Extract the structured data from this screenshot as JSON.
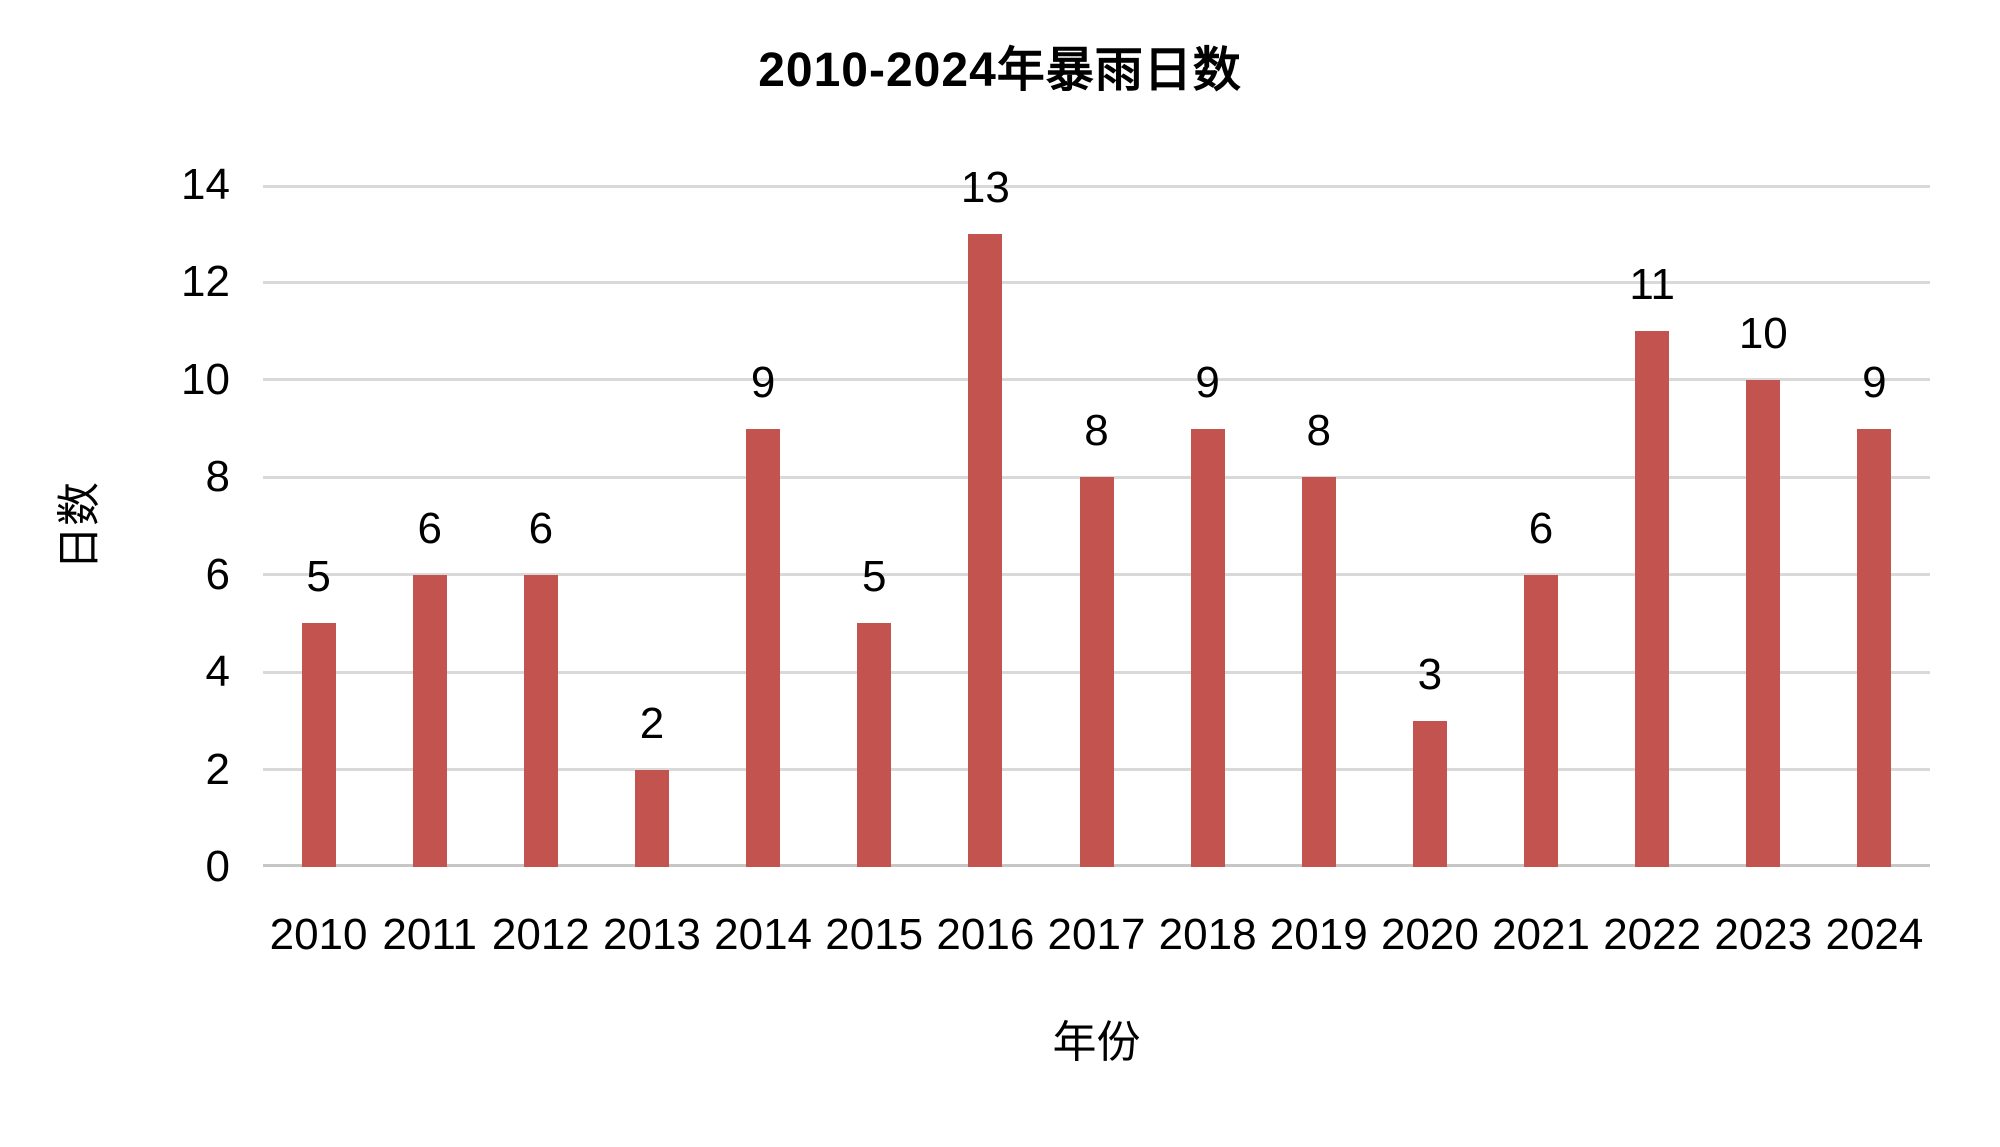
{
  "chart_data": {
    "type": "bar",
    "title": "2010-2024年暴雨日数",
    "xlabel": "年份",
    "ylabel": "日数",
    "categories": [
      "2010",
      "2011",
      "2012",
      "2013",
      "2014",
      "2015",
      "2016",
      "2017",
      "2018",
      "2019",
      "2020",
      "2021",
      "2022",
      "2023",
      "2024"
    ],
    "values": [
      5,
      6,
      6,
      2,
      9,
      5,
      13,
      8,
      9,
      8,
      3,
      6,
      11,
      10,
      9
    ],
    "yticks": [
      0,
      2,
      4,
      6,
      8,
      10,
      12,
      14
    ],
    "ylim": [
      0,
      14
    ],
    "data_labels": true,
    "grid": "horizontal",
    "legend": "none",
    "colors": {
      "bar": "#C2534E",
      "gridline": "#D9D9D9",
      "baseline": "#C6C6C6",
      "text": "#000000",
      "background": "#FFFFFF"
    }
  }
}
